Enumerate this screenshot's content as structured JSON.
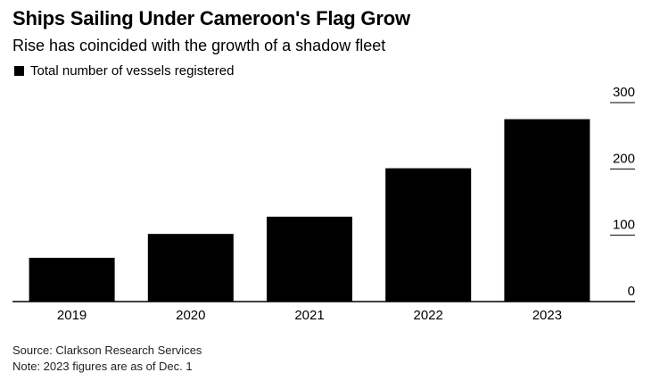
{
  "chart_data": {
    "type": "bar",
    "title": "Ships Sailing Under Cameroon's Flag Grow",
    "subtitle": "Rise has coincided with the growth of a shadow fleet",
    "legend": [
      {
        "label": "Total number of vessels registered",
        "color": "#000000"
      }
    ],
    "categories": [
      "2019",
      "2020",
      "2021",
      "2022",
      "2023"
    ],
    "values": [
      66,
      102,
      128,
      201,
      275
    ],
    "xlabel": "",
    "ylabel": "",
    "ylim": [
      0,
      300
    ],
    "yticks": [
      0,
      100,
      200,
      300
    ],
    "grid": false,
    "bar_color": "#000000"
  },
  "footer": {
    "source": "Source: Clarkson Research Services",
    "note": "Note: 2023 figures are as of Dec. 1"
  }
}
